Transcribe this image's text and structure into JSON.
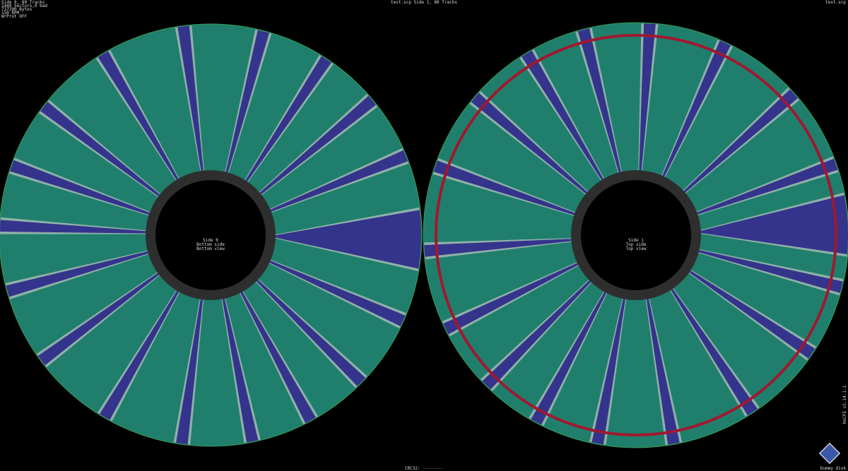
{
  "header": {
    "info_lines": [
      "Side 0, 80 Tracks",
      "1440 Sectors,0 bad",
      "737280 Bytes",
      "150 RPM",
      "WrProt OFF"
    ],
    "center": "test.scp Side 1, 80 Tracks",
    "right": "test.scp"
  },
  "disks": [
    {
      "lines": [
        "Side 0",
        "Bottom side",
        "Bottom view"
      ]
    },
    {
      "lines": [
        "Side 1",
        "Top side",
        "Top view"
      ]
    }
  ],
  "footer": {
    "crc": "CRC32: --------",
    "right": "Dummy disk",
    "version": "HxCFE v2.14.1.1"
  }
}
